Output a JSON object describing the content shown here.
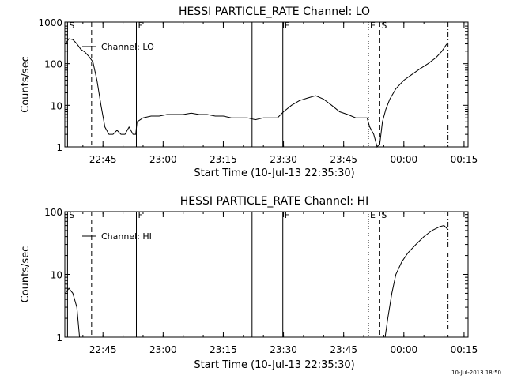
{
  "footer_timestamp": "10-Jul-2013 18:50",
  "chart_data": [
    {
      "type": "line",
      "title": "HESSI PARTICLE_RATE Channel: LO",
      "xlabel": "Start Time (10-Jul-13 22:35:30)",
      "ylabel": "Counts/sec",
      "yscale": "log",
      "xlim": [
        "22:35:30",
        "00:16:00"
      ],
      "ylim": [
        1,
        1000
      ],
      "xticks": [
        "22:45",
        "23:00",
        "23:15",
        "23:30",
        "23:45",
        "00:00",
        "00:15"
      ],
      "yticks": [
        "1",
        "10",
        "100",
        "1000"
      ],
      "legend": [
        "Channel: LO"
      ],
      "grid": false,
      "markers": [
        {
          "label": "S",
          "time": "22:36:10",
          "style": "solid"
        },
        {
          "label": "",
          "time": "22:42:10",
          "style": "dashed"
        },
        {
          "label": "F",
          "time": "22:53:20",
          "style": "solid"
        },
        {
          "label": "",
          "time": "23:22:10",
          "style": "solid"
        },
        {
          "label": "F",
          "time": "23:29:50",
          "style": "solid"
        },
        {
          "label": "E",
          "time": "23:51:10",
          "style": "dotted"
        },
        {
          "label": "S",
          "time": "23:54:00",
          "style": "dashed"
        },
        {
          "label": "",
          "time": "00:11:00",
          "style": "dashdot"
        }
      ],
      "series": [
        {
          "name": "Channel: LO",
          "values": [
            [
              "22:35:40",
              300
            ],
            [
              "22:36:30",
              400
            ],
            [
              "22:37:30",
              380
            ],
            [
              "22:38:30",
              300
            ],
            [
              "22:39:30",
              220
            ],
            [
              "22:40:30",
              190
            ],
            [
              "22:41:30",
              150
            ],
            [
              "22:42:30",
              110
            ],
            [
              "22:43:30",
              40
            ],
            [
              "22:44:30",
              10
            ],
            [
              "22:45:30",
              3
            ],
            [
              "22:46:30",
              2
            ],
            [
              "22:47:30",
              2
            ],
            [
              "22:48:30",
              2.5
            ],
            [
              "22:49:30",
              2
            ],
            [
              "22:50:30",
              2
            ],
            [
              "22:51:30",
              3
            ],
            [
              "22:52:30",
              2
            ],
            [
              "22:53:10",
              2
            ],
            [
              "22:53:30",
              4
            ],
            [
              "22:55:00",
              5
            ],
            [
              "22:57:00",
              5.5
            ],
            [
              "22:59:00",
              5.5
            ],
            [
              "23:01:00",
              6
            ],
            [
              "23:03:00",
              6
            ],
            [
              "23:05:00",
              6
            ],
            [
              "23:07:00",
              6.5
            ],
            [
              "23:09:00",
              6
            ],
            [
              "23:11:00",
              6
            ],
            [
              "23:13:00",
              5.5
            ],
            [
              "23:15:00",
              5.5
            ],
            [
              "23:17:00",
              5
            ],
            [
              "23:19:00",
              5
            ],
            [
              "23:21:00",
              5
            ],
            [
              "23:23:00",
              4.5
            ],
            [
              "23:25:00",
              5
            ],
            [
              "23:27:00",
              5
            ],
            [
              "23:28:30",
              5
            ],
            [
              "23:30:00",
              7
            ],
            [
              "23:32:00",
              10
            ],
            [
              "23:34:00",
              13
            ],
            [
              "23:36:00",
              15
            ],
            [
              "23:38:00",
              17
            ],
            [
              "23:40:00",
              14
            ],
            [
              "23:42:00",
              10
            ],
            [
              "23:44:00",
              7
            ],
            [
              "23:46:00",
              6
            ],
            [
              "23:48:00",
              5
            ],
            [
              "23:50:00",
              5
            ],
            [
              "23:50:50",
              5
            ],
            [
              "23:51:30",
              3
            ],
            [
              "23:52:30",
              2
            ],
            [
              "23:53:20",
              1
            ],
            [
              "23:54:00",
              1.2
            ],
            [
              "23:54:40",
              4
            ],
            [
              "23:55:30",
              8
            ],
            [
              "23:56:30",
              14
            ],
            [
              "23:58:00",
              25
            ],
            [
              "00:00:00",
              40
            ],
            [
              "00:02:00",
              55
            ],
            [
              "00:04:00",
              75
            ],
            [
              "00:06:00",
              100
            ],
            [
              "00:08:00",
              140
            ],
            [
              "00:09:30",
              200
            ],
            [
              "00:10:30",
              280
            ],
            [
              "00:11:00",
              320
            ]
          ]
        }
      ]
    },
    {
      "type": "line",
      "title": "HESSI PARTICLE_RATE Channel: HI",
      "xlabel": "Start Time (10-Jul-13 22:35:30)",
      "ylabel": "Counts/sec",
      "yscale": "log",
      "xlim": [
        "22:35:30",
        "00:16:00"
      ],
      "ylim": [
        1,
        100
      ],
      "xticks": [
        "22:45",
        "23:00",
        "23:15",
        "23:30",
        "23:45",
        "00:00",
        "00:15"
      ],
      "yticks": [
        "1",
        "10",
        "100"
      ],
      "legend": [
        "Channel: HI"
      ],
      "grid": false,
      "markers": [
        {
          "label": "S",
          "time": "22:36:10",
          "style": "solid"
        },
        {
          "label": "",
          "time": "22:42:10",
          "style": "dashed"
        },
        {
          "label": "F",
          "time": "22:53:20",
          "style": "solid"
        },
        {
          "label": "",
          "time": "23:22:10",
          "style": "solid"
        },
        {
          "label": "F",
          "time": "23:29:50",
          "style": "solid"
        },
        {
          "label": "E",
          "time": "23:51:10",
          "style": "dotted"
        },
        {
          "label": "S",
          "time": "23:54:00",
          "style": "dashed"
        },
        {
          "label": "",
          "time": "00:11:00",
          "style": "dashdot"
        }
      ],
      "series": [
        {
          "name": "Channel: HI",
          "values": [
            [
              "22:35:40",
              5
            ],
            [
              "22:36:30",
              6
            ],
            [
              "22:37:30",
              5
            ],
            [
              "22:38:30",
              3
            ],
            [
              "22:39:10",
              1
            ]
          ]
        },
        {
          "name": "Channel: HI",
          "values": [
            [
              "23:55:20",
              1
            ],
            [
              "23:56:00",
              2
            ],
            [
              "23:57:00",
              5
            ],
            [
              "23:58:00",
              10
            ],
            [
              "23:59:30",
              16
            ],
            [
              "00:01:00",
              22
            ],
            [
              "00:03:00",
              30
            ],
            [
              "00:05:00",
              40
            ],
            [
              "00:07:00",
              50
            ],
            [
              "00:09:00",
              58
            ],
            [
              "00:10:00",
              60
            ],
            [
              "00:11:00",
              52
            ]
          ]
        }
      ]
    }
  ]
}
